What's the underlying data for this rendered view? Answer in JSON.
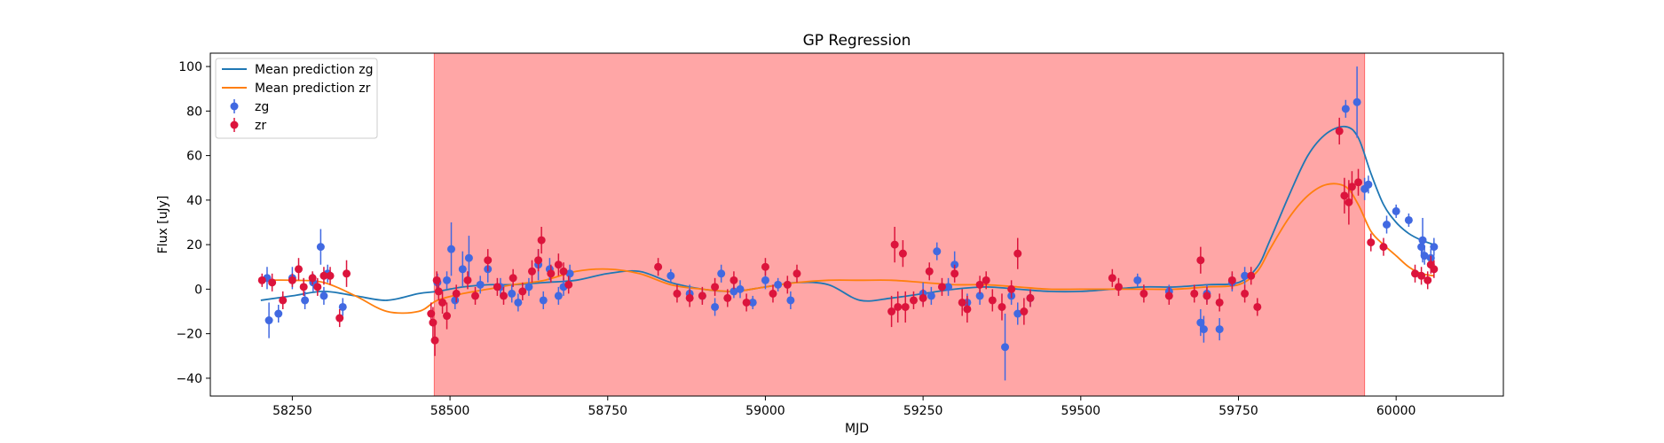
{
  "chart_data": {
    "type": "scatter",
    "title": "GP Regression",
    "xlabel": "MJD",
    "ylabel": "Flux [uJy]",
    "xlim": [
      58120,
      60170
    ],
    "ylim": [
      -48,
      106
    ],
    "xticks": [
      58250,
      58500,
      58750,
      59000,
      59250,
      59500,
      59750,
      60000
    ],
    "yticks": [
      -40,
      -20,
      0,
      20,
      40,
      60,
      80,
      100
    ],
    "grid": false,
    "legend_position": "top-left",
    "shaded_region": {
      "x_start": 58475,
      "x_end": 59950,
      "color": "#ff0000",
      "alpha": 0.35
    },
    "colors": {
      "zg_line": "#1f77b4",
      "zr_line": "#ff7f0e",
      "zg_points": "#4169e1",
      "zr_points": "#dc143c",
      "span": "#ffa6a6"
    },
    "legend": [
      {
        "label": "Mean prediction zg",
        "kind": "line",
        "color": "#1f77b4"
      },
      {
        "label": "Mean prediction zr",
        "kind": "line",
        "color": "#ff7f0e"
      },
      {
        "label": "zg",
        "kind": "errorbar",
        "color": "#4169e1"
      },
      {
        "label": "zr",
        "kind": "errorbar",
        "color": "#dc143c"
      }
    ],
    "series": [
      {
        "name": "Mean prediction zg",
        "kind": "line",
        "color": "#1f77b4",
        "x": [
          58200,
          58250,
          58300,
          58350,
          58400,
          58450,
          58480,
          58520,
          58560,
          58600,
          58650,
          58700,
          58750,
          58800,
          58850,
          58900,
          58950,
          59000,
          59050,
          59100,
          59150,
          59200,
          59250,
          59300,
          59350,
          59400,
          59450,
          59500,
          59550,
          59600,
          59650,
          59700,
          59750,
          59780,
          59800,
          59830,
          59860,
          59890,
          59920,
          59940,
          59960,
          59980,
          60000,
          60020,
          60040,
          60060
        ],
        "y": [
          -5,
          -3,
          -1,
          -3,
          -5,
          -2,
          -1,
          1,
          2,
          2,
          3,
          4,
          7,
          8,
          3,
          0,
          -1,
          1,
          3,
          2,
          -5,
          -4,
          -2,
          0,
          1,
          0,
          -1,
          -1,
          0,
          1,
          1,
          2,
          3,
          10,
          22,
          42,
          60,
          70,
          73,
          68,
          52,
          38,
          30,
          25,
          22,
          20
        ]
      },
      {
        "name": "Mean prediction zr",
        "kind": "line",
        "color": "#ff7f0e",
        "x": [
          58200,
          58250,
          58300,
          58350,
          58400,
          58450,
          58480,
          58520,
          58560,
          58600,
          58650,
          58700,
          58750,
          58800,
          58850,
          58900,
          58950,
          59000,
          59050,
          59100,
          59150,
          59200,
          59250,
          59300,
          59350,
          59400,
          59450,
          59500,
          59550,
          59600,
          59650,
          59700,
          59750,
          59780,
          59800,
          59830,
          59860,
          59890,
          59920,
          59940,
          59960,
          59980,
          60000,
          60020,
          60040,
          60060
        ],
        "y": [
          4,
          4,
          3,
          -3,
          -10,
          -10,
          -5,
          -2,
          0,
          2,
          4,
          8,
          9,
          7,
          2,
          0,
          -1,
          1,
          3,
          4,
          4,
          4,
          3,
          2,
          2,
          1,
          0,
          0,
          0,
          0,
          0,
          1,
          2,
          8,
          18,
          32,
          42,
          47,
          46,
          38,
          26,
          20,
          15,
          10,
          7,
          6
        ]
      },
      {
        "name": "zg",
        "kind": "errorbar",
        "color": "#4169e1",
        "x": [
          58210,
          58213,
          58228,
          58250,
          58270,
          58283,
          58295,
          58300,
          58306,
          58330,
          58480,
          58495,
          58502,
          58508,
          58520,
          58530,
          58548,
          58560,
          58580,
          58598,
          58608,
          58625,
          58640,
          58648,
          58658,
          58672,
          58680,
          58690,
          58850,
          58880,
          58900,
          58920,
          58930,
          58950,
          58960,
          58980,
          59000,
          59020,
          59040,
          59250,
          59263,
          59272,
          59290,
          59300,
          59320,
          59340,
          59380,
          59390,
          59400,
          59420,
          59590,
          59640,
          59690,
          59695,
          59700,
          59720,
          59740,
          59760,
          59920,
          59938,
          59950,
          59956,
          59985,
          60000,
          60020,
          60040,
          60042,
          60045,
          60055,
          60060
        ],
        "y": [
          5,
          -14,
          -11,
          5,
          -5,
          3,
          19,
          -3,
          7,
          -8,
          3,
          4,
          18,
          -5,
          9,
          14,
          2,
          9,
          1,
          -2,
          -6,
          1,
          11,
          -5,
          9,
          -3,
          1,
          7,
          6,
          -2,
          -3,
          -8,
          7,
          -1,
          0,
          -6,
          4,
          2,
          -5,
          -2,
          -3,
          17,
          1,
          11,
          -6,
          -3,
          -26,
          -3,
          -11,
          -4,
          4,
          -1,
          -15,
          -18,
          -2,
          -18,
          3,
          6,
          81,
          84,
          45,
          47,
          29,
          35,
          31,
          19,
          22,
          15,
          14,
          19
        ],
        "yerr": [
          5,
          8,
          4,
          5,
          4,
          4,
          8,
          4,
          4,
          4,
          4,
          4,
          12,
          4,
          8,
          10,
          4,
          6,
          4,
          4,
          4,
          4,
          7,
          4,
          5,
          4,
          4,
          4,
          3,
          4,
          3,
          4,
          4,
          3,
          4,
          3,
          4,
          3,
          4,
          5,
          4,
          4,
          4,
          6,
          4,
          4,
          15,
          4,
          5,
          4,
          3,
          3,
          6,
          6,
          4,
          5,
          4,
          4,
          4,
          16,
          5,
          4,
          4,
          3,
          3,
          4,
          10,
          4,
          4,
          4
        ]
      },
      {
        "name": "zr",
        "kind": "errorbar",
        "color": "#dc143c",
        "x": [
          58202,
          58218,
          58235,
          58250,
          58260,
          58268,
          58282,
          58290,
          58300,
          58310,
          58325,
          58336,
          58470,
          58473,
          58476,
          58479,
          58482,
          58488,
          58495,
          58510,
          58528,
          58540,
          58560,
          58575,
          58585,
          58600,
          58615,
          58630,
          58640,
          58645,
          58660,
          58672,
          58680,
          58688,
          58830,
          58860,
          58880,
          58900,
          58920,
          58940,
          58950,
          58970,
          59000,
          59012,
          59035,
          59050,
          59200,
          59205,
          59210,
          59218,
          59222,
          59235,
          59250,
          59260,
          59280,
          59300,
          59312,
          59320,
          59340,
          59350,
          59360,
          59375,
          59390,
          59400,
          59410,
          59420,
          59550,
          59560,
          59600,
          59640,
          59680,
          59690,
          59700,
          59720,
          59740,
          59760,
          59770,
          59780,
          59910,
          59918,
          59925,
          59930,
          59940,
          59960,
          59980,
          60030,
          60040,
          60050,
          60055,
          60060
        ],
        "y": [
          4,
          3,
          -5,
          4,
          9,
          1,
          5,
          1,
          6,
          6,
          -13,
          7,
          -11,
          -15,
          -23,
          4,
          -1,
          -6,
          -12,
          -2,
          4,
          -3,
          13,
          1,
          -3,
          5,
          -1,
          8,
          13,
          22,
          7,
          11,
          8,
          2,
          10,
          -2,
          -4,
          -3,
          1,
          -4,
          4,
          -6,
          10,
          -2,
          2,
          7,
          -10,
          20,
          -8,
          16,
          -8,
          -5,
          -4,
          8,
          1,
          7,
          -6,
          -9,
          2,
          4,
          -5,
          -8,
          0,
          16,
          -10,
          -4,
          5,
          1,
          -2,
          -3,
          -2,
          13,
          -3,
          -6,
          4,
          -2,
          6,
          -8,
          71,
          42,
          39,
          46,
          48,
          21,
          19,
          7,
          6,
          4,
          11,
          9
        ],
        "yerr": [
          3,
          4,
          4,
          3,
          5,
          4,
          3,
          4,
          4,
          4,
          4,
          6,
          5,
          7,
          7,
          4,
          4,
          5,
          6,
          4,
          4,
          4,
          5,
          4,
          4,
          4,
          4,
          5,
          5,
          6,
          4,
          5,
          4,
          4,
          4,
          4,
          4,
          4,
          4,
          4,
          4,
          4,
          4,
          4,
          4,
          4,
          7,
          8,
          7,
          6,
          7,
          4,
          4,
          4,
          4,
          4,
          6,
          6,
          4,
          4,
          5,
          6,
          4,
          7,
          6,
          4,
          4,
          4,
          4,
          4,
          4,
          6,
          4,
          4,
          4,
          4,
          4,
          4,
          6,
          8,
          10,
          7,
          6,
          4,
          4,
          4,
          4,
          4,
          4,
          4
        ]
      }
    ]
  }
}
